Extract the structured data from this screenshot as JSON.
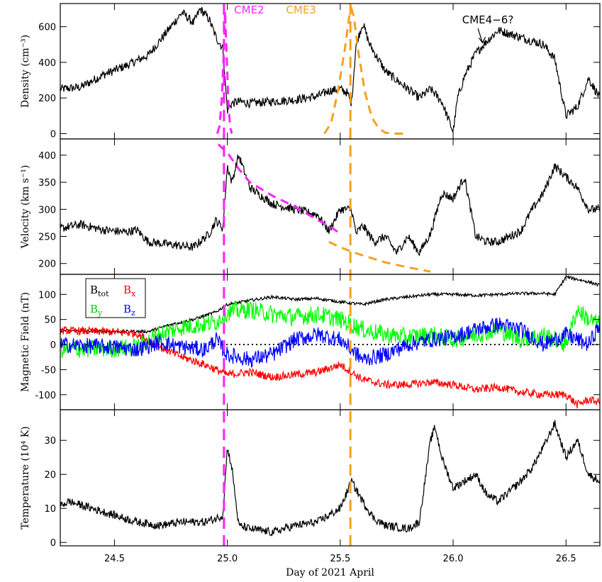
{
  "chart_data": {
    "type": "line",
    "xlabel": "Day of 2021 April",
    "xlim": [
      24.26,
      26.65
    ],
    "x_ticks": [
      24.5,
      25.0,
      25.5,
      26.0,
      26.5
    ],
    "x_tick_labels": [
      "24.5",
      "25.0",
      "25.5",
      "26.0",
      "26.5"
    ],
    "event_lines": [
      {
        "name": "CME2",
        "x": 24.985,
        "color": "#ff22ff"
      },
      {
        "name": "CME3",
        "x": 25.545,
        "color": "#f5a020"
      }
    ],
    "panels": [
      {
        "id": "density",
        "ylabel": "Density (cm⁻³)",
        "ylim": [
          -30,
          730
        ],
        "y_ticks": [
          0,
          200,
          400,
          600
        ],
        "series": [
          {
            "color": "#000000",
            "noise": 25,
            "x": [
              24.26,
              24.35,
              24.45,
              24.55,
              24.6,
              24.65,
              24.7,
              24.75,
              24.8,
              24.85,
              24.88,
              24.92,
              24.95,
              24.98,
              25.0,
              25.02,
              25.05,
              25.1,
              25.2,
              25.3,
              25.4,
              25.45,
              25.5,
              25.53,
              25.55,
              25.57,
              25.6,
              25.63,
              25.7,
              25.8,
              25.85,
              25.9,
              25.95,
              26.0,
              26.02,
              26.05,
              26.1,
              26.15,
              26.2,
              26.3,
              26.35,
              26.4,
              26.45,
              26.5,
              26.55,
              26.6,
              26.65
            ],
            "y": [
              250,
              260,
              330,
              380,
              410,
              440,
              520,
              600,
              680,
              620,
              700,
              640,
              540,
              480,
              130,
              170,
              180,
              170,
              180,
              190,
              210,
              240,
              250,
              230,
              170,
              500,
              620,
              500,
              350,
              250,
              200,
              250,
              180,
              10,
              200,
              320,
              450,
              520,
              580,
              540,
              520,
              500,
              420,
              100,
              150,
              310,
              200
            ]
          }
        ]
      },
      {
        "id": "velocity",
        "ylabel": "Velocity (km s⁻¹)",
        "ylim": [
          180,
          430
        ],
        "y_ticks": [
          200,
          250,
          300,
          350,
          400
        ],
        "series": [
          {
            "color": "#000000",
            "noise": 8,
            "x": [
              24.26,
              24.35,
              24.45,
              24.55,
              24.6,
              24.65,
              24.75,
              24.85,
              24.92,
              24.95,
              24.98,
              25.0,
              25.02,
              25.05,
              25.1,
              25.2,
              25.3,
              25.4,
              25.45,
              25.5,
              25.55,
              25.57,
              25.6,
              25.65,
              25.7,
              25.75,
              25.8,
              25.85,
              25.9,
              25.95,
              26.0,
              26.05,
              26.1,
              26.15,
              26.2,
              26.3,
              26.35,
              26.4,
              26.45,
              26.5,
              26.55,
              26.6,
              26.65
            ],
            "y": [
              265,
              272,
              262,
              258,
              262,
              240,
              235,
              230,
              255,
              280,
              265,
              380,
              350,
              400,
              340,
              310,
              300,
              290,
              260,
              300,
              300,
              255,
              270,
              240,
              250,
              220,
              250,
              220,
              255,
              330,
              320,
              360,
              250,
              240,
              240,
              260,
              300,
              330,
              380,
              360,
              340,
              300,
              300
            ]
          }
        ]
      },
      {
        "id": "magnetic",
        "ylabel": "Magnetic Field (nT)",
        "ylim": [
          -130,
          140
        ],
        "y_ticks": [
          -100,
          -50,
          0,
          50,
          100
        ],
        "zero_line": true,
        "legend": [
          "B",
          "tot",
          "B",
          "x",
          "B",
          "y",
          "B",
          "z"
        ],
        "series": [
          {
            "name": "Btot",
            "color": "#000000",
            "noise": 3,
            "x": [
              24.26,
              24.5,
              24.65,
              24.75,
              24.85,
              24.95,
              25.0,
              25.1,
              25.2,
              25.3,
              25.4,
              25.5,
              25.6,
              25.7,
              25.8,
              25.9,
              26.0,
              26.1,
              26.2,
              26.3,
              26.4,
              26.45,
              26.5,
              26.55,
              26.6,
              26.65
            ],
            "y": [
              28,
              26,
              26,
              40,
              50,
              65,
              80,
              88,
              95,
              90,
              92,
              85,
              80,
              90,
              95,
              100,
              100,
              98,
              100,
              102,
              102,
              100,
              135,
              130,
              125,
              118
            ]
          },
          {
            "name": "Bx",
            "color": "#ff0000",
            "noise": 8,
            "x": [
              24.26,
              24.5,
              24.6,
              24.7,
              24.8,
              24.9,
              24.95,
              25.0,
              25.1,
              25.2,
              25.3,
              25.4,
              25.5,
              25.6,
              25.7,
              25.8,
              25.9,
              26.0,
              26.1,
              26.2,
              26.3,
              26.4,
              26.5,
              26.55,
              26.6,
              26.65
            ],
            "y": [
              28,
              25,
              22,
              -5,
              -25,
              -40,
              -50,
              -60,
              -55,
              -65,
              -60,
              -55,
              -40,
              -70,
              -80,
              -80,
              -75,
              -80,
              -90,
              -85,
              -95,
              -100,
              -100,
              -120,
              -110,
              -115
            ]
          },
          {
            "name": "By",
            "color": "#00ff00",
            "noise": 18,
            "x": [
              24.26,
              24.5,
              24.6,
              24.7,
              24.8,
              24.9,
              24.95,
              25.0,
              25.1,
              25.2,
              25.3,
              25.4,
              25.5,
              25.6,
              25.7,
              25.8,
              25.9,
              26.0,
              26.1,
              26.2,
              26.3,
              26.4,
              26.5,
              26.55,
              26.6,
              26.65
            ],
            "y": [
              -10,
              -8,
              -5,
              20,
              35,
              40,
              45,
              65,
              70,
              60,
              55,
              60,
              50,
              30,
              20,
              15,
              20,
              10,
              20,
              30,
              10,
              20,
              0,
              70,
              50,
              40
            ]
          },
          {
            "name": "Bz",
            "color": "#0000ff",
            "noise": 16,
            "x": [
              24.26,
              24.5,
              24.6,
              24.7,
              24.8,
              24.9,
              24.95,
              25.0,
              25.1,
              25.2,
              25.3,
              25.4,
              25.5,
              25.6,
              25.7,
              25.8,
              25.9,
              26.0,
              26.1,
              26.2,
              26.3,
              26.4,
              26.5,
              26.55,
              26.6,
              26.65
            ],
            "y": [
              0,
              -5,
              -10,
              5,
              -5,
              -10,
              10,
              -20,
              -30,
              -20,
              10,
              20,
              10,
              -30,
              -20,
              0,
              10,
              15,
              30,
              40,
              30,
              0,
              20,
              10,
              0,
              40
            ]
          }
        ]
      },
      {
        "id": "temperature",
        "ylabel": "Temperature (10⁴ K)",
        "ylim": [
          -1,
          39
        ],
        "y_ticks": [
          0,
          10,
          20,
          30
        ],
        "series": [
          {
            "color": "#000000",
            "noise": 1.2,
            "x": [
              24.26,
              24.3,
              24.4,
              24.5,
              24.6,
              24.7,
              24.8,
              24.9,
              24.95,
              24.98,
              25.0,
              25.02,
              25.05,
              25.1,
              25.2,
              25.3,
              25.4,
              25.5,
              25.55,
              25.6,
              25.65,
              25.7,
              25.8,
              25.85,
              25.9,
              25.92,
              25.95,
              26.0,
              26.05,
              26.1,
              26.15,
              26.2,
              26.3,
              26.35,
              26.4,
              26.45,
              26.5,
              26.55,
              26.6,
              26.65
            ],
            "y": [
              11,
              12,
              10,
              8,
              6,
              5,
              6,
              6,
              7,
              8,
              28,
              22,
              5,
              4,
              3,
              5,
              6,
              10,
              18,
              12,
              7,
              5,
              4,
              6,
              30,
              34,
              25,
              16,
              18,
              20,
              14,
              12,
              18,
              22,
              28,
              35,
              25,
              30,
              20,
              18
            ]
          }
        ]
      }
    ],
    "model_curves": [
      {
        "panel": "density",
        "color": "#ff22ff",
        "x": [
          24.955,
          24.965,
          24.975,
          24.983,
          24.99,
          24.997,
          25.004,
          25.012,
          25.02
        ],
        "y": [
          0,
          40,
          190,
          420,
          690,
          440,
          190,
          40,
          0
        ]
      },
      {
        "panel": "density",
        "color": "#f5a020",
        "x": [
          25.43,
          25.46,
          25.49,
          25.52,
          25.54,
          25.55,
          25.56,
          25.58,
          25.61,
          25.64,
          25.67,
          25.7,
          25.75,
          25.8
        ],
        "y": [
          0,
          60,
          240,
          470,
          660,
          700,
          660,
          460,
          230,
          90,
          30,
          5,
          0,
          0
        ]
      },
      {
        "panel": "velocity",
        "color": "#ff22ff",
        "x": [
          24.96,
          24.985,
          25.0,
          25.05,
          25.1,
          25.2,
          25.3,
          25.4,
          25.45,
          25.5
        ],
        "y": [
          420,
          410,
          405,
          375,
          350,
          325,
          305,
          280,
          270,
          255
        ]
      },
      {
        "panel": "velocity",
        "color": "#f5a020",
        "x": [
          25.45,
          25.5,
          25.55,
          25.6,
          25.7,
          25.8,
          25.9
        ],
        "y": [
          240,
          230,
          222,
          215,
          202,
          193,
          185
        ]
      }
    ],
    "annotations": [
      {
        "text": "CME2",
        "color": "#ff22ff",
        "x": 25.03,
        "y": 675
      },
      {
        "text": "CME3",
        "color": "#f5a020",
        "x": 25.26,
        "y": 675
      },
      {
        "text": "CME4−6?",
        "color": "#000000",
        "x": 26.04,
        "y": 618
      }
    ]
  }
}
